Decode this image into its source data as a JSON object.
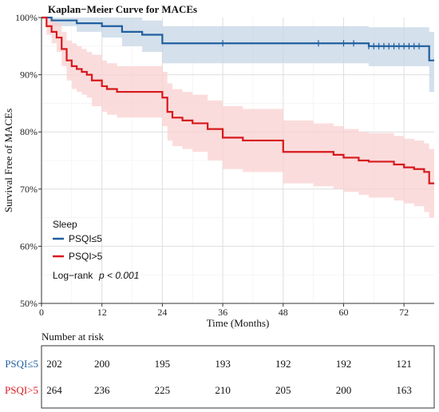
{
  "chart_data": {
    "type": "line",
    "title": "Kaplan−Meier Curve for MACEs",
    "xlabel": "Time (Months)",
    "ylabel": "Survival Free of MACEs",
    "xlim": [
      0,
      78
    ],
    "ylim": [
      50,
      100
    ],
    "x_ticks": [
      0,
      12,
      24,
      36,
      48,
      60,
      72
    ],
    "x_tick_labels": [
      "0",
      "12",
      "24",
      "36",
      "48",
      "60",
      "72"
    ],
    "y_ticks": [
      50,
      60,
      70,
      80,
      90,
      100
    ],
    "y_tick_labels": [
      "50%",
      "60%",
      "70%",
      "80%",
      "90%",
      "100%"
    ],
    "grid": true,
    "legend": {
      "title": "Sleep",
      "placement": "bottom-left",
      "entries": [
        "PSQI≤5",
        "PSQI>5"
      ]
    },
    "annotation": {
      "prefix": "Log−rank",
      "p_text": "p < 0.001"
    },
    "series": [
      {
        "name": "PSQI≤5",
        "color": "#1f5f9e",
        "band_color": "#c6d5e6",
        "x": [
          0,
          2,
          7,
          12,
          16,
          20,
          24,
          36,
          48,
          60,
          65,
          77,
          78
        ],
        "y": [
          100,
          99.5,
          99,
          98.5,
          97.5,
          97,
          95.5,
          95.5,
          95.5,
          95.5,
          95,
          92.5,
          92.5
        ],
        "lower": [
          100,
          98.5,
          97.5,
          96.5,
          95,
          94,
          92,
          92,
          92,
          92,
          91.5,
          87,
          87
        ],
        "upper": [
          100,
          100,
          100,
          100,
          100,
          99.5,
          98.5,
          98.5,
          98.5,
          98.5,
          98.3,
          97.5,
          97.5
        ],
        "censor_x": [
          36,
          55,
          60,
          62,
          65,
          66,
          67,
          68,
          69,
          70,
          71,
          72,
          73,
          74,
          75
        ]
      },
      {
        "name": "PSQI>5",
        "color": "#d7191c",
        "band_color": "#f9d0d0",
        "x": [
          0,
          1,
          2,
          3,
          4,
          5,
          6,
          7,
          8,
          9,
          10,
          12,
          13,
          14,
          15,
          17,
          20,
          24,
          25,
          26,
          28,
          30,
          33,
          36,
          40,
          48,
          54,
          58,
          60,
          63,
          65,
          68,
          70,
          72,
          74,
          76,
          77,
          78
        ],
        "y": [
          100,
          98.5,
          97.5,
          96.5,
          94.5,
          92.5,
          91.5,
          91,
          90.5,
          90,
          89,
          88,
          87.5,
          87.5,
          87,
          87,
          87,
          86,
          83.5,
          82.5,
          82,
          81.5,
          80.5,
          79,
          78.5,
          76.5,
          76.5,
          76,
          75.5,
          75,
          74.8,
          74.8,
          74.3,
          73.8,
          73.5,
          73,
          71,
          71
        ],
        "lower": [
          100,
          97,
          95.5,
          94,
          91.5,
          89,
          87.5,
          87,
          86.5,
          86,
          84.5,
          83.5,
          83,
          83,
          82.5,
          82.5,
          82.5,
          81,
          78.5,
          77.5,
          77,
          76.5,
          75,
          73.5,
          73,
          71,
          70.5,
          70,
          69.5,
          69,
          68.5,
          68.5,
          68,
          67.5,
          67,
          66,
          65,
          65
        ],
        "upper": [
          100,
          99.8,
          99.5,
          99,
          97.5,
          96,
          95.5,
          95,
          94.5,
          94,
          93.5,
          92.5,
          92,
          92,
          91.5,
          91.5,
          91.5,
          90.5,
          88.5,
          87.5,
          87,
          86.5,
          85.5,
          84.5,
          84,
          82,
          81.5,
          81,
          80.5,
          80,
          79.8,
          79.8,
          79.3,
          78.8,
          78.5,
          78,
          77,
          77
        ]
      }
    ],
    "risk_table": {
      "title": "Number at risk",
      "times": [
        0,
        12,
        24,
        36,
        48,
        60,
        72
      ],
      "rows": [
        {
          "label": "PSQI≤5",
          "color": "#1f5f9e",
          "values": [
            202,
            200,
            195,
            193,
            192,
            192,
            121
          ]
        },
        {
          "label": "PSQI>5",
          "color": "#d7191c",
          "values": [
            264,
            236,
            225,
            210,
            205,
            200,
            163
          ]
        }
      ]
    }
  }
}
